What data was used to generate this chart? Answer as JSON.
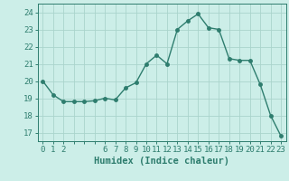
{
  "x": [
    0,
    1,
    2,
    3,
    4,
    5,
    6,
    7,
    8,
    9,
    10,
    11,
    12,
    13,
    14,
    15,
    16,
    17,
    18,
    19,
    20,
    21,
    22,
    23
  ],
  "y": [
    20.0,
    19.2,
    18.8,
    18.8,
    18.8,
    18.85,
    19.0,
    18.9,
    19.6,
    19.9,
    21.0,
    21.5,
    21.0,
    23.0,
    23.5,
    23.9,
    23.1,
    23.0,
    21.3,
    21.2,
    21.2,
    19.8,
    18.0,
    16.8
  ],
  "line_color": "#2e7d6e",
  "marker": "o",
  "markersize": 2.5,
  "linewidth": 1.0,
  "bg_color": "#cceee8",
  "grid_color": "#aad4cc",
  "xlabel": "Humidex (Indice chaleur)",
  "ylim": [
    16.5,
    24.5
  ],
  "yticks": [
    17,
    18,
    19,
    20,
    21,
    22,
    23,
    24
  ],
  "xtick_labels": [
    "0",
    "1",
    "2",
    "",
    "",
    "",
    "6",
    "7",
    "8",
    "9",
    "10",
    "11",
    "12",
    "13",
    "14",
    "15",
    "16",
    "17",
    "18",
    "19",
    "20",
    "21",
    "22",
    "23"
  ],
  "xlim": [
    -0.5,
    23.5
  ],
  "tick_color": "#2e7d6e",
  "label_color": "#2e7d6e",
  "xlabel_fontsize": 7.5,
  "tick_fontsize": 6.5
}
